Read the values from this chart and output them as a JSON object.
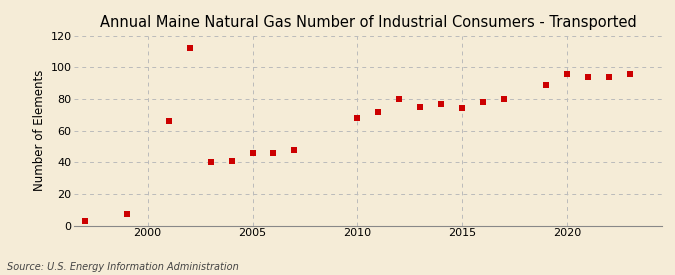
{
  "title": "Annual Maine Natural Gas Number of Industrial Consumers - Transported",
  "ylabel": "Number of Elements",
  "source": "Source: U.S. Energy Information Administration",
  "background_color": "#f5ecd7",
  "plot_background_color": "#f5ecd7",
  "marker_color": "#cc0000",
  "grid_color": "#bbbbbb",
  "years": [
    1997,
    1999,
    2001,
    2002,
    2003,
    2004,
    2005,
    2006,
    2007,
    2010,
    2011,
    2012,
    2013,
    2014,
    2015,
    2016,
    2017,
    2019,
    2020,
    2021,
    2022,
    2023
  ],
  "values": [
    3,
    7,
    66,
    112,
    40,
    41,
    46,
    46,
    48,
    68,
    72,
    80,
    75,
    77,
    74,
    78,
    80,
    89,
    96,
    94,
    94,
    96
  ],
  "xlim": [
    1996.5,
    2024.5
  ],
  "ylim": [
    0,
    120
  ],
  "yticks": [
    0,
    20,
    40,
    60,
    80,
    100,
    120
  ],
  "xticks": [
    2000,
    2005,
    2010,
    2015,
    2020
  ],
  "title_fontsize": 10.5,
  "label_fontsize": 8.5,
  "tick_fontsize": 8,
  "source_fontsize": 7,
  "marker_size": 4.5
}
